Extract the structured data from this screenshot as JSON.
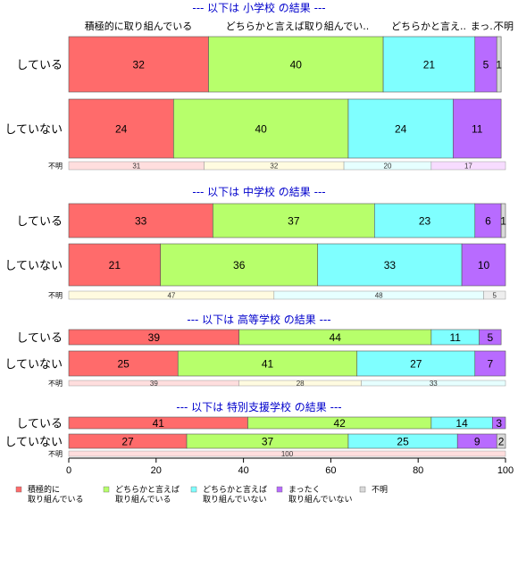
{
  "chart_data": {
    "type": "bar",
    "orientation": "horizontal",
    "stacked": true,
    "xlim": [
      0,
      100
    ],
    "xticks": [
      0,
      20,
      40,
      60,
      80,
      100
    ],
    "category_headers": [
      "積極的に取り組んでいる",
      "どちらかと言えば取り組んでい..",
      "どちらかと言え..",
      "まっ..",
      "不明"
    ],
    "legend": [
      {
        "label": [
          "積極的に",
          "取り組んでいる"
        ],
        "color": "#ff6b6b"
      },
      {
        "label": [
          "どちらかと言えば",
          "取り組んでいる"
        ],
        "color": "#b7ff6b"
      },
      {
        "label": [
          "どちらかと言えば",
          "取り組んでいない"
        ],
        "color": "#7fffff"
      },
      {
        "label": [
          "まったく",
          "取り組んでいない"
        ],
        "color": "#b86bff"
      },
      {
        "label": [
          "不明"
        ],
        "color": "#d9d9d9"
      }
    ],
    "groups": [
      {
        "title": "--- 以下は 小学校 の結果 ---",
        "rows": [
          {
            "label": "している",
            "values": [
              32,
              40,
              21,
              5,
              1
            ]
          },
          {
            "label": "していない",
            "values": [
              24,
              40,
              24,
              11,
              0
            ]
          }
        ],
        "unknown": {
          "label": "不明",
          "values": [
            31,
            32,
            20,
            17,
            0
          ]
        }
      },
      {
        "title": "--- 以下は 中学校 の結果 ---",
        "rows": [
          {
            "label": "している",
            "values": [
              33,
              37,
              23,
              6,
              1
            ]
          },
          {
            "label": "していない",
            "values": [
              21,
              36,
              33,
              10,
              0
            ]
          }
        ],
        "unknown": {
          "label": "不明",
          "values": [
            0,
            47,
            48,
            0,
            5
          ]
        }
      },
      {
        "title": "--- 以下は 高等学校 の結果 ---",
        "rows": [
          {
            "label": "している",
            "values": [
              39,
              44,
              11,
              5,
              0
            ]
          },
          {
            "label": "していない",
            "values": [
              25,
              41,
              27,
              7,
              0
            ]
          }
        ],
        "unknown": {
          "label": "不明",
          "values": [
            39,
            28,
            33,
            0,
            0
          ]
        }
      },
      {
        "title": "--- 以下は 特別支援学校 の結果 ---",
        "rows": [
          {
            "label": "している",
            "values": [
              41,
              42,
              14,
              3,
              0
            ]
          },
          {
            "label": "していない",
            "values": [
              27,
              37,
              25,
              9,
              2
            ]
          }
        ],
        "unknown": {
          "label": "不明",
          "values": [
            100,
            0,
            0,
            0,
            0
          ]
        }
      }
    ]
  }
}
